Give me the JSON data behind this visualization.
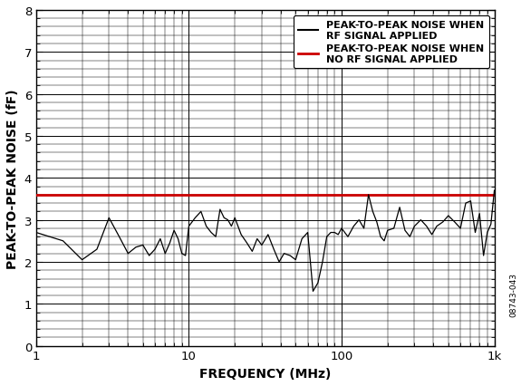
{
  "title": "",
  "xlabel": "FREQUENCY (MHz)",
  "ylabel": "PEAK-TO-PEAK NOISE (fF)",
  "xmin": 1,
  "xmax": 1000,
  "ymin": 0,
  "ymax": 8,
  "yticks": [
    0,
    1,
    2,
    3,
    4,
    5,
    6,
    7,
    8
  ],
  "red_line_y": 3.6,
  "background_color": "#ffffff",
  "line_color_black": "#000000",
  "line_color_red": "#cc0000",
  "legend_label_black": "PEAK-TO-PEAK NOISE WHEN\nRF SIGNAL APPLIED",
  "legend_label_red": "PEAK-TO-PEAK NOISE WHEN\nNO RF SIGNAL APPLIED",
  "watermark": "08743-043",
  "signal_x": [
    1.0,
    1.5,
    2.0,
    2.5,
    3.0,
    3.5,
    4.0,
    4.5,
    5.0,
    5.5,
    6.0,
    6.5,
    7.0,
    7.5,
    8.0,
    8.5,
    9.0,
    9.5,
    10.0,
    11.0,
    12.0,
    13.0,
    14.0,
    15.0,
    16.0,
    17.0,
    18.0,
    19.0,
    20.0,
    22.0,
    24.0,
    26.0,
    28.0,
    30.0,
    33.0,
    36.0,
    39.0,
    42.0,
    46.0,
    50.0,
    55.0,
    60.0,
    65.0,
    70.0,
    75.0,
    80.0,
    85.0,
    90.0,
    95.0,
    100.0,
    110.0,
    120.0,
    130.0,
    140.0,
    150.0,
    160.0,
    170.0,
    180.0,
    190.0,
    200.0,
    220.0,
    240.0,
    260.0,
    280.0,
    300.0,
    330.0,
    360.0,
    390.0,
    420.0,
    460.0,
    500.0,
    550.0,
    600.0,
    650.0,
    700.0,
    750.0,
    800.0,
    850.0,
    900.0,
    950.0,
    1000.0
  ],
  "signal_y": [
    2.7,
    2.5,
    2.05,
    2.3,
    3.05,
    2.6,
    2.2,
    2.35,
    2.4,
    2.15,
    2.3,
    2.55,
    2.2,
    2.45,
    2.75,
    2.55,
    2.2,
    2.15,
    2.85,
    3.05,
    3.2,
    2.85,
    2.7,
    2.6,
    3.25,
    3.05,
    3.0,
    2.85,
    3.05,
    2.65,
    2.45,
    2.25,
    2.55,
    2.4,
    2.65,
    2.3,
    2.0,
    2.2,
    2.15,
    2.05,
    2.55,
    2.7,
    1.3,
    1.5,
    2.0,
    2.6,
    2.7,
    2.7,
    2.65,
    2.8,
    2.6,
    2.85,
    3.0,
    2.8,
    3.6,
    3.2,
    2.95,
    2.6,
    2.5,
    2.75,
    2.8,
    3.3,
    2.75,
    2.6,
    2.85,
    3.0,
    2.85,
    2.65,
    2.85,
    2.95,
    3.1,
    2.95,
    2.8,
    3.4,
    3.45,
    2.7,
    3.15,
    2.15,
    2.7,
    2.9,
    3.7
  ]
}
